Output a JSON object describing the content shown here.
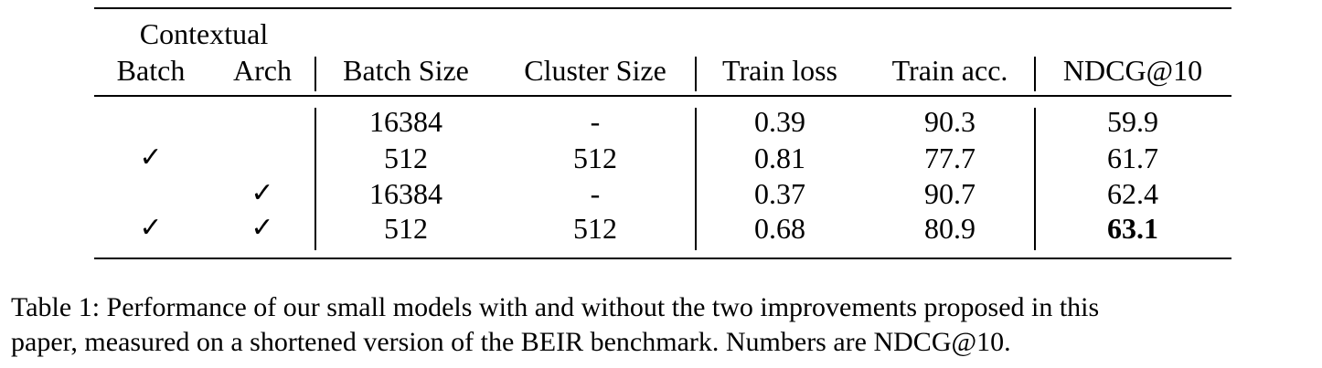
{
  "table": {
    "group_header": "Contextual",
    "headers": {
      "batch": "Batch",
      "arch": "Arch",
      "batch_size": "Batch Size",
      "cluster_size": "Cluster Size",
      "train_loss": "Train loss",
      "train_acc": "Train acc.",
      "ndcg": "NDCG@10"
    },
    "rows": [
      {
        "batch": "",
        "arch": "",
        "batch_size": "16384",
        "cluster_size": "-",
        "train_loss": "0.39",
        "train_acc": "90.3",
        "ndcg": "59.9"
      },
      {
        "batch": "✓",
        "arch": "",
        "batch_size": "512",
        "cluster_size": "512",
        "train_loss": "0.81",
        "train_acc": "77.7",
        "ndcg": "61.7"
      },
      {
        "batch": "",
        "arch": "✓",
        "batch_size": "16384",
        "cluster_size": "-",
        "train_loss": "0.37",
        "train_acc": "90.7",
        "ndcg": "62.4"
      },
      {
        "batch": "✓",
        "arch": "✓",
        "batch_size": "512",
        "cluster_size": "512",
        "train_loss": "0.68",
        "train_acc": "80.9",
        "ndcg": "63.1"
      }
    ]
  },
  "caption": {
    "line1": "Table 1: Performance of our small models with and without the two improvements proposed in this",
    "line2": "paper, measured on a shortened version of the BEIR benchmark. Numbers are NDCG@10."
  }
}
